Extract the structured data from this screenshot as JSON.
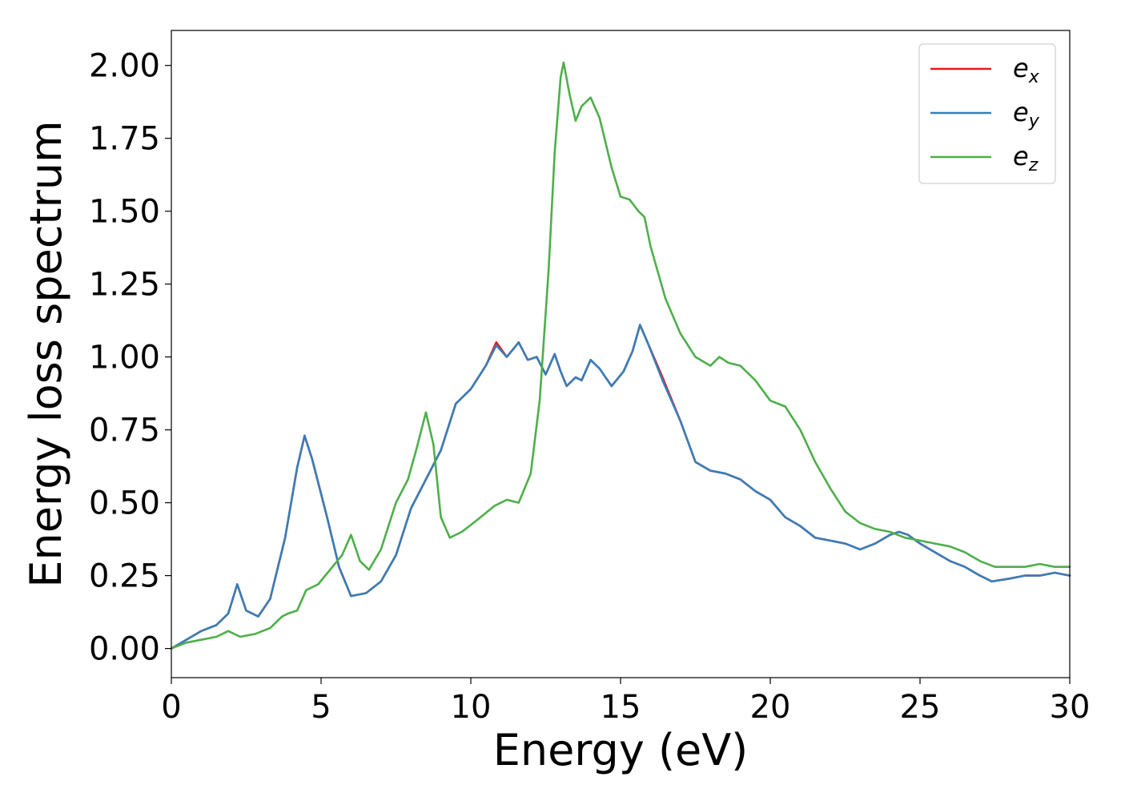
{
  "chart_data": {
    "type": "line",
    "title": "",
    "xlabel": "Energy (eV)",
    "ylabel": "Energy loss spectrum",
    "xlim": [
      0,
      30
    ],
    "ylim": [
      -0.1,
      2.12
    ],
    "xticks": [
      0,
      5,
      10,
      15,
      20,
      25,
      30
    ],
    "xtick_labels": [
      "0",
      "5",
      "10",
      "15",
      "20",
      "25",
      "30"
    ],
    "yticks": [
      0,
      0.25,
      0.5,
      0.75,
      1.0,
      1.25,
      1.5,
      1.75,
      2.0
    ],
    "ytick_labels": [
      "0.00",
      "0.25",
      "0.50",
      "0.75",
      "1.00",
      "1.25",
      "1.50",
      "1.75",
      "2.00"
    ],
    "grid": false,
    "legend_position": "top-right",
    "series": [
      {
        "name": "e_x",
        "label_base": "e",
        "label_sub": "x",
        "color": "#e41a1c",
        "x": [
          0,
          0.5,
          1.0,
          1.5,
          1.9,
          2.2,
          2.5,
          2.9,
          3.3,
          3.8,
          4.2,
          4.45,
          4.7,
          5.2,
          5.6,
          6.0,
          6.5,
          7.0,
          7.5,
          8.0,
          8.5,
          9.0,
          9.5,
          10.0,
          10.5,
          10.85,
          11.2,
          11.6,
          11.9,
          12.2,
          12.5,
          12.8,
          13.0,
          13.2,
          13.5,
          13.7,
          14.0,
          14.3,
          14.7,
          15.1,
          15.4,
          15.65,
          15.9,
          16.4,
          17.0,
          17.5,
          18.0,
          18.5,
          19.0,
          19.5,
          20.0,
          20.5,
          21.0,
          21.5,
          22.0,
          22.5,
          23.0,
          23.5,
          24.0,
          24.3,
          24.6,
          25.0,
          25.5,
          26.0,
          26.5,
          27.0,
          27.4,
          28.0,
          28.5,
          29.0,
          29.5,
          30.0
        ],
        "y": [
          0,
          0.03,
          0.06,
          0.08,
          0.12,
          0.22,
          0.13,
          0.11,
          0.17,
          0.38,
          0.62,
          0.73,
          0.65,
          0.45,
          0.28,
          0.18,
          0.19,
          0.23,
          0.32,
          0.48,
          0.58,
          0.68,
          0.84,
          0.89,
          0.97,
          1.05,
          1.0,
          1.05,
          0.99,
          1.0,
          0.94,
          1.01,
          0.95,
          0.9,
          0.93,
          0.92,
          0.99,
          0.96,
          0.9,
          0.95,
          1.02,
          1.11,
          1.05,
          0.93,
          0.78,
          0.64,
          0.61,
          0.6,
          0.58,
          0.54,
          0.51,
          0.45,
          0.42,
          0.38,
          0.37,
          0.36,
          0.34,
          0.36,
          0.39,
          0.4,
          0.39,
          0.36,
          0.33,
          0.3,
          0.28,
          0.25,
          0.23,
          0.24,
          0.25,
          0.25,
          0.26,
          0.25
        ]
      },
      {
        "name": "e_y",
        "label_base": "e",
        "label_sub": "y",
        "color": "#377eb8",
        "x": [
          0,
          0.5,
          1.0,
          1.5,
          1.9,
          2.2,
          2.5,
          2.9,
          3.3,
          3.8,
          4.2,
          4.45,
          4.7,
          5.2,
          5.6,
          6.0,
          6.5,
          7.0,
          7.5,
          8.0,
          8.5,
          9.0,
          9.5,
          10.0,
          10.5,
          10.85,
          11.2,
          11.6,
          11.9,
          12.2,
          12.5,
          12.8,
          13.0,
          13.2,
          13.5,
          13.7,
          14.0,
          14.3,
          14.7,
          15.1,
          15.4,
          15.65,
          15.9,
          16.4,
          17.0,
          17.5,
          18.0,
          18.5,
          19.0,
          19.5,
          20.0,
          20.5,
          21.0,
          21.5,
          22.0,
          22.5,
          23.0,
          23.5,
          24.0,
          24.3,
          24.6,
          25.0,
          25.5,
          26.0,
          26.5,
          27.0,
          27.4,
          28.0,
          28.5,
          29.0,
          29.5,
          30.0
        ],
        "y": [
          0,
          0.03,
          0.06,
          0.08,
          0.12,
          0.22,
          0.13,
          0.11,
          0.17,
          0.38,
          0.62,
          0.73,
          0.65,
          0.45,
          0.28,
          0.18,
          0.19,
          0.23,
          0.32,
          0.48,
          0.58,
          0.68,
          0.84,
          0.89,
          0.97,
          1.04,
          1.0,
          1.05,
          0.99,
          1.0,
          0.94,
          1.01,
          0.95,
          0.9,
          0.93,
          0.92,
          0.99,
          0.96,
          0.9,
          0.95,
          1.02,
          1.11,
          1.05,
          0.92,
          0.78,
          0.64,
          0.61,
          0.6,
          0.58,
          0.54,
          0.51,
          0.45,
          0.42,
          0.38,
          0.37,
          0.36,
          0.34,
          0.36,
          0.39,
          0.4,
          0.39,
          0.36,
          0.33,
          0.3,
          0.28,
          0.25,
          0.23,
          0.24,
          0.25,
          0.25,
          0.26,
          0.25
        ]
      },
      {
        "name": "e_z",
        "label_base": "e",
        "label_sub": "z",
        "color": "#4daf4a",
        "x": [
          0,
          0.5,
          1.0,
          1.5,
          1.9,
          2.3,
          2.8,
          3.3,
          3.7,
          3.9,
          4.2,
          4.5,
          4.9,
          5.3,
          5.7,
          6.0,
          6.3,
          6.6,
          7.0,
          7.5,
          7.9,
          8.2,
          8.5,
          8.75,
          9.0,
          9.3,
          9.7,
          10.2,
          10.8,
          11.2,
          11.6,
          12.0,
          12.3,
          12.6,
          12.8,
          13.0,
          13.1,
          13.3,
          13.5,
          13.7,
          14.0,
          14.3,
          14.7,
          15.0,
          15.3,
          15.6,
          15.8,
          16.0,
          16.5,
          17.0,
          17.5,
          18.0,
          18.3,
          18.6,
          19.0,
          19.5,
          20.0,
          20.5,
          21.0,
          21.5,
          22.0,
          22.5,
          23.0,
          23.5,
          24.0,
          24.5,
          25.0,
          25.5,
          26.0,
          26.5,
          27.0,
          27.5,
          28.0,
          28.5,
          29.0,
          29.5,
          30.0
        ],
        "y": [
          0,
          0.02,
          0.03,
          0.04,
          0.06,
          0.04,
          0.05,
          0.07,
          0.11,
          0.12,
          0.13,
          0.2,
          0.22,
          0.27,
          0.32,
          0.39,
          0.3,
          0.27,
          0.34,
          0.5,
          0.58,
          0.69,
          0.81,
          0.7,
          0.45,
          0.38,
          0.4,
          0.44,
          0.49,
          0.51,
          0.5,
          0.6,
          0.85,
          1.3,
          1.7,
          1.96,
          2.01,
          1.9,
          1.81,
          1.86,
          1.89,
          1.82,
          1.65,
          1.55,
          1.54,
          1.5,
          1.48,
          1.38,
          1.2,
          1.08,
          1.0,
          0.97,
          1.0,
          0.98,
          0.97,
          0.92,
          0.85,
          0.83,
          0.75,
          0.64,
          0.55,
          0.47,
          0.43,
          0.41,
          0.4,
          0.38,
          0.37,
          0.36,
          0.35,
          0.33,
          0.3,
          0.28,
          0.28,
          0.28,
          0.29,
          0.28,
          0.28
        ]
      }
    ]
  }
}
